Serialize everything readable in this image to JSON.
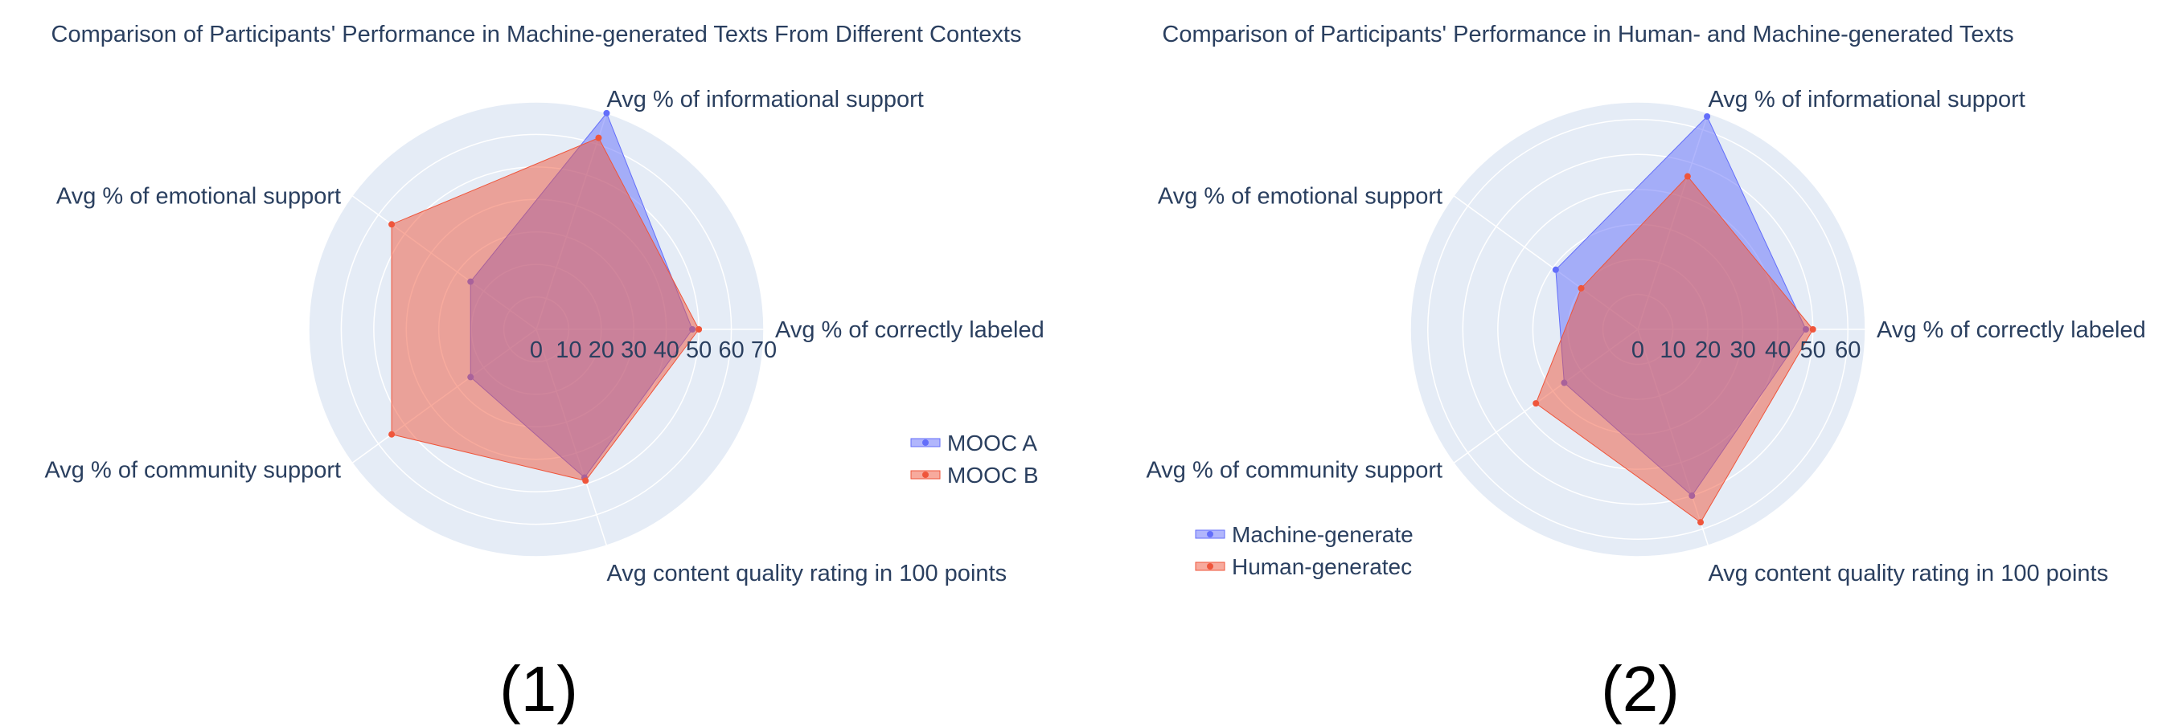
{
  "chart_data": [
    {
      "type": "radar",
      "title": "Comparison of Participants' Performance in Machine-generated Texts From Different Contexts",
      "panel_label": "(1)",
      "axes": [
        "Avg % of correctly labeled",
        "Avg % of informational support",
        "Avg % of emotional support",
        "Avg % of community support",
        "Avg content quality rating in 100 points"
      ],
      "radial_range": [
        0,
        70
      ],
      "radial_ticks": [
        "0",
        "10",
        "20",
        "30",
        "40",
        "50",
        "60",
        "70"
      ],
      "series": [
        {
          "name": "MOOC A",
          "color": "#636efa",
          "values": [
            48,
            70,
            25,
            25,
            48
          ]
        },
        {
          "name": "MOOC B",
          "color": "#ef553b",
          "values": [
            50,
            62,
            55,
            55,
            49
          ]
        }
      ],
      "legend": {
        "position": "right"
      }
    },
    {
      "type": "radar",
      "title": "Comparison of Participants' Performance in Human- and Machine-generated Texts",
      "panel_label": "(2)",
      "axes": [
        "Avg % of correctly labeled",
        "Avg % of informational support",
        "Avg % of emotional support",
        "Avg % of community support",
        "Avg content quality rating in 100 points"
      ],
      "radial_range": [
        0,
        65
      ],
      "radial_ticks": [
        "0",
        "10",
        "20",
        "30",
        "40",
        "50",
        "60"
      ],
      "series": [
        {
          "name": "Machine-generate",
          "color": "#636efa",
          "values": [
            48,
            64,
            29,
            26,
            50
          ]
        },
        {
          "name": "Human-generatec",
          "color": "#ef553b",
          "values": [
            50,
            46,
            20,
            36,
            58
          ]
        }
      ],
      "legend": {
        "position": "bottom-left"
      }
    }
  ]
}
